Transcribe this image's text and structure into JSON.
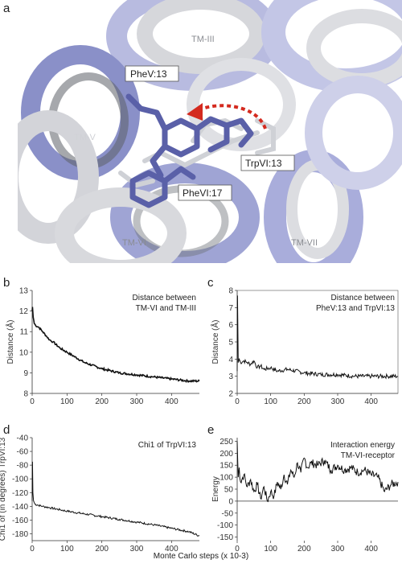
{
  "figure": {
    "panel_a": {
      "letter": "a",
      "helix_labels": [
        "TM-III",
        "TM-V",
        "TM-VI",
        "TM-VII"
      ],
      "residue_labels": [
        "PheV:13",
        "TrpVI:13",
        "PheVI:17"
      ],
      "colors": {
        "holo": "#8088c4",
        "apo": "#cfd1d6",
        "residue": "#5a60a8",
        "arrow": "#d42a1f"
      }
    },
    "xaxis_title": "Monte Carlo steps (x 10-3)"
  },
  "chart_data": [
    {
      "panel": "b",
      "type": "line",
      "ylabel": "Distance (Å)",
      "annotation": [
        "Distance between",
        "TM-VI and TM-III"
      ],
      "xlim": [
        0,
        480
      ],
      "ylim": [
        8,
        13
      ],
      "xticks": [
        "0",
        "100",
        "200",
        "300",
        "400"
      ],
      "yticks": [
        "8",
        "9",
        "10",
        "11",
        "12",
        "13"
      ],
      "x": [
        0,
        1,
        3,
        6,
        10,
        20,
        30,
        40,
        50,
        60,
        80,
        100,
        120,
        150,
        200,
        250,
        300,
        350,
        400,
        450,
        480
      ],
      "y": [
        12.0,
        12.2,
        11.7,
        11.4,
        11.3,
        11.2,
        11.0,
        10.8,
        10.6,
        10.5,
        10.2,
        10.0,
        9.8,
        9.5,
        9.2,
        9.0,
        8.9,
        8.8,
        8.7,
        8.6,
        8.6
      ]
    },
    {
      "panel": "c",
      "type": "line",
      "ylabel": "Distance (Å)",
      "annotation": [
        "Distance between",
        "PheV:13 and TrpVI:13"
      ],
      "xlim": [
        0,
        480
      ],
      "ylim": [
        2,
        8
      ],
      "xticks": [
        "0",
        "100",
        "200",
        "300",
        "400"
      ],
      "yticks": [
        "2",
        "3",
        "4",
        "5",
        "6",
        "7",
        "8"
      ],
      "x": [
        0,
        1,
        3,
        6,
        10,
        20,
        30,
        40,
        50,
        60,
        70,
        80,
        100,
        120,
        150,
        200,
        250,
        300,
        350,
        400,
        450,
        480
      ],
      "y": [
        3.3,
        7.7,
        3.8,
        4.0,
        3.8,
        3.9,
        3.8,
        3.7,
        3.9,
        3.5,
        3.6,
        3.4,
        3.5,
        3.3,
        3.4,
        3.2,
        3.1,
        3.1,
        3.0,
        3.0,
        3.0,
        3.0
      ]
    },
    {
      "panel": "d",
      "type": "line",
      "ylabel": "Chi1 of (in degrees) TrpVI:13",
      "annotation": [
        "Chi1 of TrpVI:13"
      ],
      "xlim": [
        0,
        480
      ],
      "ylim": [
        -190,
        -40
      ],
      "xticks": [
        "0",
        "100",
        "200",
        "300",
        "400"
      ],
      "yticks": [
        "-40",
        "-60",
        "-80",
        "-100",
        "-120",
        "-140",
        "-160",
        "-180"
      ],
      "x": [
        0,
        1,
        2,
        4,
        8,
        15,
        30,
        50,
        80,
        100,
        150,
        200,
        250,
        300,
        350,
        400,
        450,
        480
      ],
      "y": [
        -132,
        -75,
        -120,
        -132,
        -137,
        -138,
        -140,
        -142,
        -145,
        -147,
        -151,
        -155,
        -159,
        -163,
        -167,
        -172,
        -177,
        -183
      ]
    },
    {
      "panel": "e",
      "type": "line",
      "ylabel": "Energy",
      "annotation": [
        "Interaction energy",
        "TM-VI-receptor"
      ],
      "xlim": [
        0,
        480
      ],
      "ylim": [
        -165,
        265
      ],
      "xticks": [
        "0",
        "100",
        "200",
        "300",
        "400"
      ],
      "yticks": [
        "250",
        "200",
        "150",
        "100",
        "50",
        "0",
        "-50",
        "-100",
        "-150"
      ],
      "x": [
        0,
        3,
        6,
        10,
        20,
        30,
        40,
        50,
        60,
        70,
        80,
        90,
        100,
        110,
        120,
        130,
        140,
        150,
        160,
        170,
        180,
        190,
        200,
        210,
        220,
        240,
        260,
        280,
        300,
        320,
        340,
        360,
        380,
        400,
        420,
        440,
        460,
        480
      ],
      "y": [
        250,
        100,
        140,
        80,
        110,
        60,
        90,
        40,
        70,
        10,
        60,
        0,
        40,
        20,
        80,
        50,
        110,
        70,
        130,
        100,
        160,
        120,
        180,
        140,
        160,
        150,
        170,
        130,
        150,
        130,
        140,
        120,
        130,
        110,
        100,
        40,
        70,
        80
      ]
    }
  ]
}
